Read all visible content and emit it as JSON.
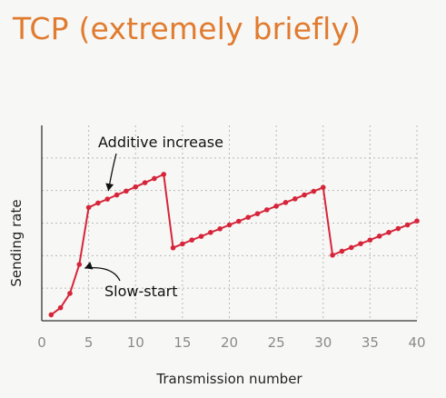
{
  "slide": {
    "title": "TCP (extremely briefly)"
  },
  "colors": {
    "title": "#e07b2f",
    "series": "#d6253a",
    "grid": "#b9b9b9",
    "axis": "#333333",
    "tick": "#8a8a8a",
    "background": "#f7f7f5"
  },
  "chart_data": {
    "type": "line",
    "xlabel": "Transmission number",
    "ylabel": "Sending rate",
    "xlim": [
      0,
      40
    ],
    "ylim": [
      0,
      7.5
    ],
    "xticks": [
      0,
      5,
      10,
      15,
      20,
      25,
      30,
      35,
      40
    ],
    "y_gridlines": [
      1.25,
      2.5,
      3.75,
      5,
      6.25
    ],
    "grid": true,
    "series": [
      {
        "x": [
          1,
          2,
          3,
          4,
          5,
          6,
          7,
          8,
          9,
          10,
          11,
          12,
          13,
          14,
          15,
          16,
          17,
          18,
          19,
          20,
          21,
          22,
          23,
          24,
          25,
          26,
          27,
          28,
          29,
          30,
          31,
          32,
          33,
          34,
          35,
          36,
          37,
          38,
          39,
          40
        ],
        "values": [
          0.23,
          0.5,
          1.05,
          2.16,
          4.35,
          4.52,
          4.67,
          4.83,
          4.98,
          5.14,
          5.3,
          5.46,
          5.62,
          2.8,
          2.95,
          3.1,
          3.24,
          3.39,
          3.53,
          3.68,
          3.82,
          3.97,
          4.11,
          4.26,
          4.4,
          4.54,
          4.68,
          4.83,
          4.97,
          5.12,
          2.52,
          2.67,
          2.81,
          2.96,
          3.1,
          3.25,
          3.39,
          3.54,
          3.68,
          3.83
        ]
      }
    ],
    "annotations": [
      {
        "text": "Additive increase",
        "points_to": [
          7,
          4.67
        ]
      },
      {
        "text": "Slow-start",
        "points_to": [
          4,
          2.16
        ]
      }
    ]
  }
}
